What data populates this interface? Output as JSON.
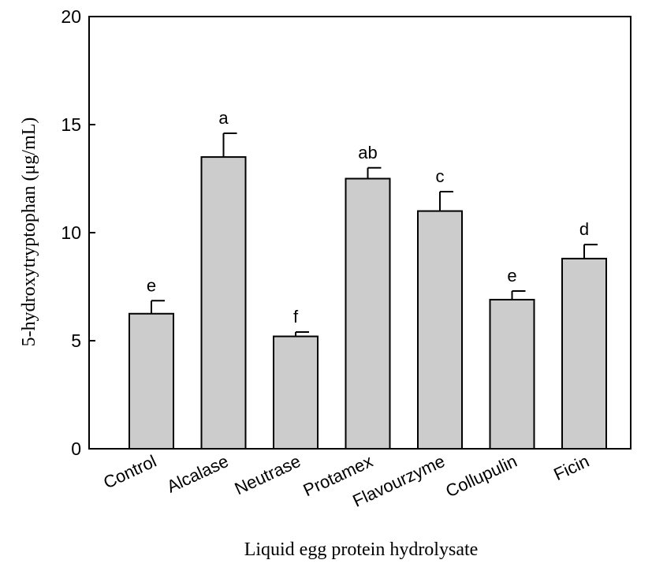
{
  "chart_data": {
    "type": "bar",
    "xlabel": "Liquid egg protein hydrolysate",
    "ylabel": "5-hydroxytryptophan (μg/mL)",
    "ylim": [
      0,
      20
    ],
    "yticks": [
      0,
      5,
      10,
      15,
      20
    ],
    "categories": [
      "Control",
      "Alcalase",
      "Neutrase",
      "Protamex",
      "Flavourzyme",
      "Collupulin",
      "Ficin"
    ],
    "values": [
      6.25,
      13.5,
      5.2,
      12.5,
      11.0,
      6.9,
      8.8
    ],
    "errors": [
      0.6,
      1.1,
      0.2,
      0.5,
      0.9,
      0.4,
      0.65
    ],
    "significance": [
      "e",
      "a",
      "f",
      "ab",
      "c",
      "e",
      "d"
    ],
    "bar_color": "#cccccc",
    "grid": false,
    "legend": "none"
  }
}
